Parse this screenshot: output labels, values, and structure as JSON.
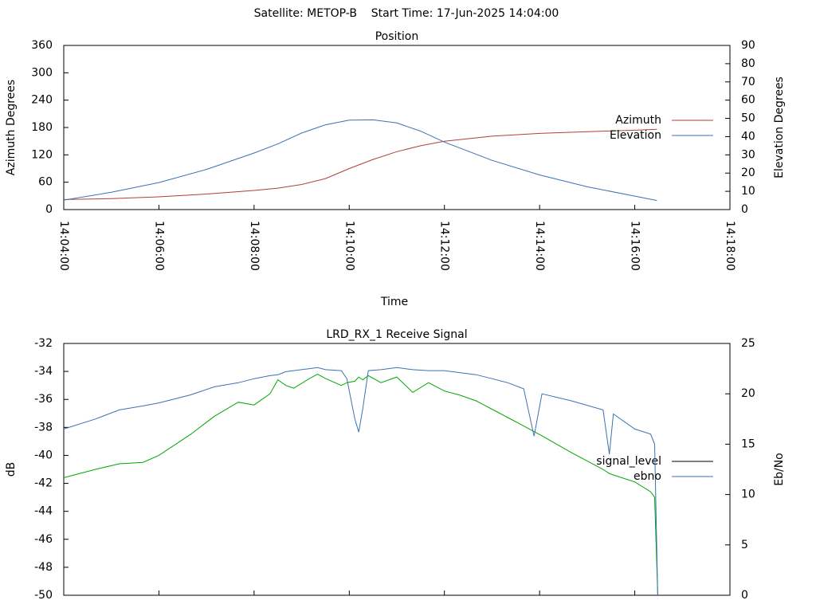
{
  "header": {
    "title": "Satellite: METOP-B    Start Time: 17-Jun-2025 14:04:00"
  },
  "chart_data": [
    {
      "type": "line",
      "title": "Position",
      "x_label": "Time",
      "y_label": "Azimuth Degrees",
      "y2_label": "Elevation Degrees",
      "x": [
        "14:04:00",
        "14:05:00",
        "14:06:00",
        "14:07:00",
        "14:08:00",
        "14:08:30",
        "14:09:00",
        "14:09:30",
        "14:10:00",
        "14:10:30",
        "14:11:00",
        "14:11:30",
        "14:12:00",
        "14:13:00",
        "14:14:00",
        "14:15:00",
        "14:16:00",
        "14:16:28"
      ],
      "xlim": [
        "14:04:00",
        "14:18:00"
      ],
      "xticks": [
        "14:04:00",
        "14:06:00",
        "14:08:00",
        "14:10:00",
        "14:12:00",
        "14:14:00",
        "14:16:00",
        "14:18:00"
      ],
      "ylim": [
        0,
        360
      ],
      "yticks": [
        0,
        60,
        120,
        180,
        240,
        300,
        360
      ],
      "y2lim": [
        0,
        90
      ],
      "y2ticks": [
        0,
        10,
        20,
        30,
        40,
        50,
        60,
        70,
        80,
        90
      ],
      "legend": "right",
      "series": [
        {
          "name": "Azimuth",
          "color": "#b0403a",
          "axis": "y",
          "values": [
            22,
            24,
            28,
            34,
            42,
            47,
            55,
            68,
            90,
            110,
            127,
            140,
            150,
            161,
            167,
            171,
            174,
            176
          ]
        },
        {
          "name": "Elevation",
          "color": "#3a72b0",
          "axis": "y2",
          "values": [
            5.2,
            9.5,
            14.8,
            22,
            31,
            36,
            42,
            46.5,
            49,
            49.2,
            47.5,
            43,
            37,
            27,
            19,
            12.5,
            7.4,
            5
          ]
        }
      ]
    },
    {
      "type": "line",
      "title": "LRD_RX_1 Receive Signal",
      "y_label": "dB",
      "y2_label": "Eb/No",
      "x": [
        "14:04:00",
        "14:04:40",
        "14:05:10",
        "14:05:40",
        "14:06:00",
        "14:06:40",
        "14:07:10",
        "14:07:40",
        "14:08:00",
        "14:08:20",
        "14:08:30",
        "14:08:40",
        "14:08:50",
        "14:09:10",
        "14:09:20",
        "14:09:30",
        "14:09:50",
        "14:09:57",
        "14:10:07",
        "14:10:12",
        "14:10:17",
        "14:10:24",
        "14:10:40",
        "14:11:00",
        "14:11:20",
        "14:11:40",
        "14:12:00",
        "14:12:20",
        "14:12:40",
        "14:13:00",
        "14:13:20",
        "14:13:40",
        "14:13:53",
        "14:14:03",
        "14:14:40",
        "14:15:20",
        "14:15:28",
        "14:15:33",
        "14:16:00",
        "14:16:20",
        "14:16:25",
        "14:16:29"
      ],
      "xlim": [
        "14:04:00",
        "14:18:00"
      ],
      "ylim": [
        -50,
        -32
      ],
      "yticks": [
        -50,
        -48,
        -46,
        -44,
        -42,
        -40,
        -38,
        -36,
        -34,
        -32
      ],
      "y2lim": [
        0,
        25
      ],
      "y2ticks": [
        0,
        5,
        10,
        15,
        20,
        25
      ],
      "legend": "right",
      "series": [
        {
          "name": "signal_level",
          "color": "#00a800",
          "legend_color": "#000000",
          "axis": "y",
          "values": [
            -41.6,
            -41,
            -40.6,
            -40.5,
            -40,
            -38.5,
            -37.2,
            -36.2,
            -36.4,
            -35.6,
            -34.6,
            -35,
            -35.2,
            -34.5,
            -34.2,
            -34.5,
            -35,
            -34.8,
            -34.7,
            -34.4,
            -34.6,
            -34.3,
            -34.8,
            -34.4,
            -35.5,
            -34.8,
            -35.4,
            -35.7,
            -36.1,
            -36.7,
            -37.3,
            -37.9,
            -38.3,
            -38.6,
            -39.8,
            -41,
            -41.3,
            -41.4,
            -41.9,
            -42.6,
            -43,
            -50
          ]
        },
        {
          "name": "ebno",
          "color": "#3a72b0",
          "axis": "y2",
          "values": [
            16.5,
            17.5,
            18.4,
            18.8,
            19.1,
            19.9,
            20.7,
            21.1,
            21.5,
            21.8,
            21.9,
            22.2,
            22.3,
            22.5,
            22.6,
            22.4,
            22.3,
            21.5,
            17.5,
            16.2,
            18.5,
            22.3,
            22.4,
            22.6,
            22.4,
            22.3,
            22.3,
            22.1,
            21.9,
            21.5,
            21.1,
            20.5,
            15.8,
            20,
            19.3,
            18.4,
            14,
            18,
            16.5,
            16,
            15,
            0
          ]
        }
      ]
    }
  ]
}
